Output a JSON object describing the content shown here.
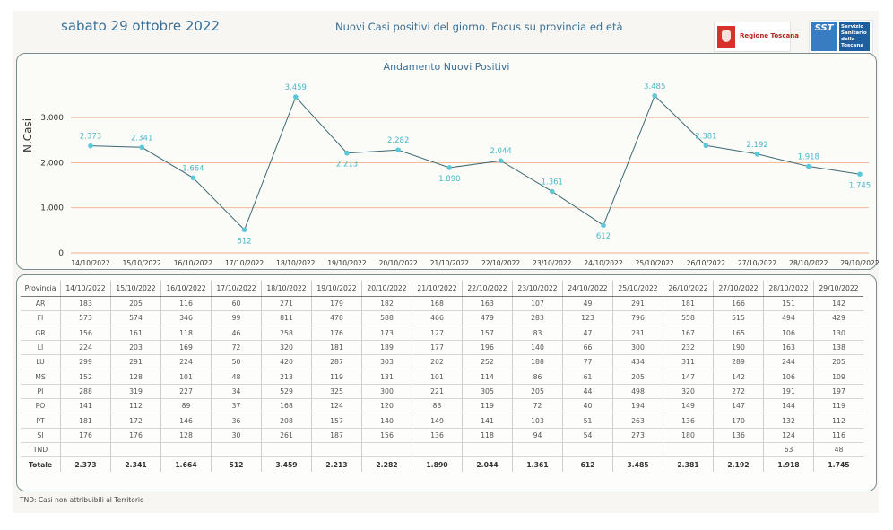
{
  "header": {
    "date": "sabato 29 ottobre 2022",
    "title": "Nuovi Casi positivi del giorno. Focus su provincia ed età",
    "logo_regione": "Regione Toscana",
    "logo_sst_short": "SST",
    "logo_sst_text": "Servizio Sanitario della Toscana"
  },
  "chart_data": {
    "type": "line",
    "title": "Andamento Nuovi Positivi",
    "xlabel": "",
    "ylabel": "N.Casi",
    "categories": [
      "14/10/2022",
      "15/10/2022",
      "16/10/2022",
      "17/10/2022",
      "18/10/2022",
      "19/10/2022",
      "20/10/2022",
      "21/10/2022",
      "22/10/2022",
      "23/10/2022",
      "24/10/2022",
      "25/10/2022",
      "26/10/2022",
      "27/10/2022",
      "28/10/2022",
      "29/10/2022"
    ],
    "values": [
      2373,
      2341,
      1664,
      512,
      3459,
      2213,
      2282,
      1890,
      2044,
      1361,
      612,
      3485,
      2381,
      2192,
      1918,
      1745
    ],
    "value_labels": [
      "2.373",
      "2.341",
      "1.664",
      "512",
      "3.459",
      "2.213",
      "2.282",
      "1.890",
      "2.044",
      "1.361",
      "612",
      "3.485",
      "2.381",
      "2.192",
      "1.918",
      "1.745"
    ],
    "ylim": [
      0,
      3500
    ],
    "yticks": [
      0,
      1000,
      2000,
      3000
    ],
    "ytick_labels": [
      "0",
      "1.000",
      "2.000",
      "3.000"
    ],
    "grid": true,
    "colors": {
      "line": "#3d6a72",
      "marker": "#5bc8d8",
      "label": "#4ab8cc",
      "grid": "#f0b28c"
    }
  },
  "table": {
    "headers": [
      "Provincia",
      "14/10/2022",
      "15/10/2022",
      "16/10/2022",
      "17/10/2022",
      "18/10/2022",
      "19/10/2022",
      "20/10/2022",
      "21/10/2022",
      "22/10/2022",
      "23/10/2022",
      "24/10/2022",
      "25/10/2022",
      "26/10/2022",
      "27/10/2022",
      "28/10/2022",
      "29/10/2022"
    ],
    "rows": [
      [
        "AR",
        "183",
        "205",
        "116",
        "60",
        "271",
        "179",
        "182",
        "168",
        "163",
        "107",
        "49",
        "291",
        "181",
        "166",
        "151",
        "142"
      ],
      [
        "FI",
        "573",
        "574",
        "346",
        "99",
        "811",
        "478",
        "588",
        "466",
        "479",
        "283",
        "123",
        "796",
        "558",
        "515",
        "494",
        "429"
      ],
      [
        "GR",
        "156",
        "161",
        "118",
        "46",
        "258",
        "176",
        "173",
        "127",
        "157",
        "83",
        "47",
        "231",
        "167",
        "165",
        "106",
        "130"
      ],
      [
        "LI",
        "224",
        "203",
        "169",
        "72",
        "320",
        "181",
        "189",
        "177",
        "196",
        "140",
        "66",
        "300",
        "232",
        "190",
        "163",
        "138"
      ],
      [
        "LU",
        "299",
        "291",
        "224",
        "50",
        "420",
        "287",
        "303",
        "262",
        "252",
        "188",
        "77",
        "434",
        "311",
        "289",
        "244",
        "205"
      ],
      [
        "MS",
        "152",
        "128",
        "101",
        "48",
        "213",
        "119",
        "131",
        "101",
        "114",
        "86",
        "61",
        "205",
        "147",
        "142",
        "106",
        "109"
      ],
      [
        "PI",
        "288",
        "319",
        "227",
        "34",
        "529",
        "325",
        "300",
        "221",
        "305",
        "205",
        "44",
        "498",
        "320",
        "272",
        "191",
        "197"
      ],
      [
        "PO",
        "141",
        "112",
        "89",
        "37",
        "168",
        "124",
        "120",
        "83",
        "119",
        "72",
        "40",
        "194",
        "149",
        "147",
        "144",
        "119"
      ],
      [
        "PT",
        "181",
        "172",
        "146",
        "36",
        "208",
        "157",
        "140",
        "149",
        "141",
        "103",
        "51",
        "263",
        "136",
        "170",
        "132",
        "112"
      ],
      [
        "SI",
        "176",
        "176",
        "128",
        "30",
        "261",
        "187",
        "156",
        "136",
        "118",
        "94",
        "54",
        "273",
        "180",
        "136",
        "124",
        "116"
      ],
      [
        "TND",
        "",
        "",
        "",
        "",
        "",
        "",
        "",
        "",
        "",
        "",
        "",
        "",
        "",
        "",
        "63",
        "48"
      ]
    ],
    "total": [
      "Totale",
      "2.373",
      "2.341",
      "1.664",
      "512",
      "3.459",
      "2.213",
      "2.282",
      "1.890",
      "2.044",
      "1.361",
      "612",
      "3.485",
      "2.381",
      "2.192",
      "1.918",
      "1.745"
    ]
  },
  "footer": {
    "note": "TND:  Casi non attribuibili al Territorio"
  }
}
